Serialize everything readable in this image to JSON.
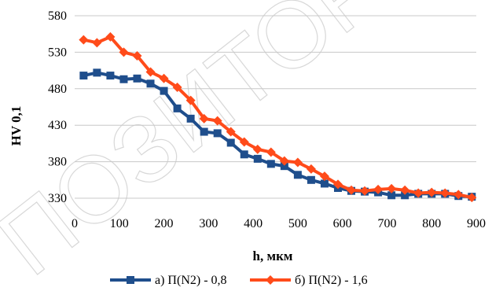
{
  "chart_data": {
    "type": "line",
    "xlabel": "h, мкм",
    "ylabel": "HV 0,1",
    "xlim": [
      0,
      900
    ],
    "ylim": [
      330,
      580
    ],
    "xticks": [
      0,
      100,
      200,
      300,
      400,
      500,
      600,
      700,
      800,
      900
    ],
    "yticks": [
      330,
      380,
      430,
      480,
      530,
      580
    ],
    "grid": "horizontal",
    "legend": "bottom",
    "series": [
      {
        "name": "а) П(N2) - 0,8",
        "color": "#1f4e8c",
        "marker": "square",
        "x": [
          20,
          50,
          80,
          110,
          140,
          170,
          200,
          230,
          260,
          290,
          320,
          350,
          380,
          410,
          440,
          470,
          500,
          530,
          560,
          590,
          620,
          650,
          680,
          710,
          740,
          770,
          800,
          830,
          860,
          890
        ],
        "y": [
          498,
          502,
          498,
          493,
          494,
          487,
          477,
          453,
          439,
          421,
          419,
          406,
          390,
          384,
          377,
          374,
          362,
          355,
          350,
          344,
          340,
          339,
          338,
          334,
          334,
          336,
          336,
          336,
          333,
          332
        ]
      },
      {
        "name": "б) П(N2) - 1,6",
        "color": "#ff4b1a",
        "marker": "diamond",
        "x": [
          20,
          50,
          80,
          110,
          140,
          170,
          200,
          230,
          260,
          290,
          320,
          350,
          380,
          410,
          440,
          470,
          500,
          530,
          560,
          590,
          620,
          650,
          680,
          710,
          740,
          770,
          800,
          830,
          860,
          890
        ],
        "y": [
          547,
          543,
          551,
          530,
          525,
          503,
          494,
          482,
          464,
          439,
          436,
          421,
          407,
          397,
          393,
          381,
          379,
          370,
          360,
          349,
          341,
          340,
          342,
          343,
          341,
          337,
          338,
          337,
          335,
          331
        ]
      }
    ]
  },
  "watermark_text": "ПОЗИТОРИЙ"
}
